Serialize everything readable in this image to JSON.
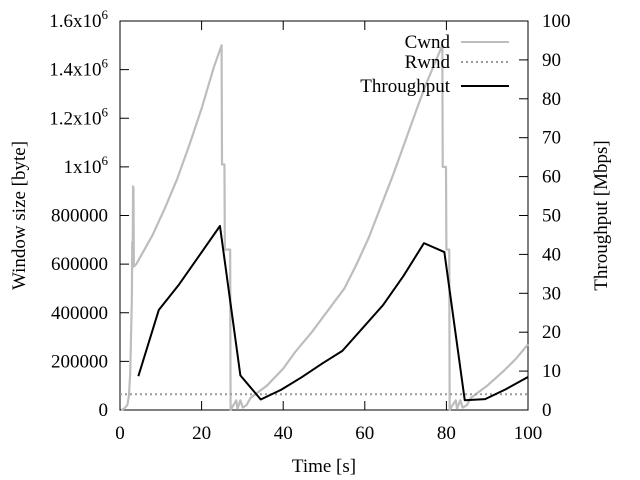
{
  "chart_data": {
    "type": "line",
    "xlabel": "Time [s]",
    "ylabel": "Window size [byte]",
    "y2label": "Throughput [Mbps]",
    "xlim": [
      0,
      100
    ],
    "ylim": [
      0,
      1600000
    ],
    "y2lim": [
      0,
      100
    ],
    "grid": false,
    "legend_position": "top-right",
    "x_ticks": [
      "0",
      "20",
      "40",
      "60",
      "80",
      "100"
    ],
    "y_ticks": [
      {
        "value": 0,
        "label": "0"
      },
      {
        "value": 200000,
        "label": "200000"
      },
      {
        "value": 400000,
        "label": "400000"
      },
      {
        "value": 600000,
        "label": "600000"
      },
      {
        "value": 800000,
        "label": "800000"
      },
      {
        "value": 1000000,
        "mantissa": "1x10",
        "exp": "6"
      },
      {
        "value": 1200000,
        "mantissa": "1.2x10",
        "exp": "6"
      },
      {
        "value": 1400000,
        "mantissa": "1.4x10",
        "exp": "6"
      },
      {
        "value": 1600000,
        "mantissa": "1.6x10",
        "exp": "6"
      }
    ],
    "y2_ticks": [
      "0",
      "10",
      "20",
      "30",
      "40",
      "50",
      "60",
      "70",
      "80",
      "90",
      "100"
    ],
    "series": [
      {
        "name": "Cwnd",
        "axis": "y",
        "color": "#bdbdbd",
        "style": "solid",
        "points": [
          [
            0.3,
            0
          ],
          [
            1,
            5000
          ],
          [
            1.8,
            20000
          ],
          [
            2.2,
            60000
          ],
          [
            2.5,
            150000
          ],
          [
            2.7,
            300000
          ],
          [
            2.9,
            450000
          ],
          [
            3.0,
            690000
          ],
          [
            3.1,
            590000
          ],
          [
            3.2,
            920000
          ],
          [
            3.3,
            910000
          ],
          [
            3.4,
            590000
          ],
          [
            4,
            600000
          ],
          [
            5,
            630000
          ],
          [
            8,
            720000
          ],
          [
            11,
            830000
          ],
          [
            14,
            950000
          ],
          [
            17,
            1090000
          ],
          [
            20,
            1240000
          ],
          [
            23,
            1410000
          ],
          [
            24.9,
            1500000
          ],
          [
            25,
            1010000
          ],
          [
            25.6,
            1010000
          ],
          [
            25.7,
            660000
          ],
          [
            27,
            660000
          ],
          [
            27.1,
            0
          ],
          [
            27.8,
            20000
          ],
          [
            28.5,
            40000
          ],
          [
            28.8,
            5000
          ],
          [
            29.5,
            40000
          ],
          [
            30.1,
            10000
          ],
          [
            31,
            20000
          ],
          [
            32,
            50000
          ],
          [
            36,
            100000
          ],
          [
            40,
            170000
          ],
          [
            43,
            240000
          ],
          [
            47,
            320000
          ],
          [
            51,
            410000
          ],
          [
            55,
            500000
          ],
          [
            58,
            600000
          ],
          [
            61,
            710000
          ],
          [
            64,
            840000
          ],
          [
            67,
            970000
          ],
          [
            70,
            1110000
          ],
          [
            73,
            1250000
          ],
          [
            75,
            1340000
          ],
          [
            77,
            1420000
          ],
          [
            79,
            1500000
          ],
          [
            79.1,
            1000000
          ],
          [
            79.9,
            1000000
          ],
          [
            80,
            660000
          ],
          [
            80.7,
            660000
          ],
          [
            80.8,
            0
          ],
          [
            81.5,
            20000
          ],
          [
            82.3,
            40000
          ],
          [
            82.6,
            5000
          ],
          [
            83.4,
            40000
          ],
          [
            84,
            10000
          ],
          [
            85,
            20000
          ],
          [
            86,
            50000
          ],
          [
            90,
            100000
          ],
          [
            94,
            160000
          ],
          [
            97,
            210000
          ],
          [
            100,
            270000
          ]
        ]
      },
      {
        "name": "Rwnd",
        "axis": "y",
        "color": "#9a9a9a",
        "style": "dotted",
        "points": [
          [
            0,
            65000
          ],
          [
            100,
            65000
          ]
        ]
      },
      {
        "name": "Throughput",
        "axis": "y2",
        "color": "#000000",
        "style": "solid",
        "points": [
          [
            4.5,
            8.7
          ],
          [
            9.5,
            25.7
          ],
          [
            14.5,
            32.3
          ],
          [
            19.5,
            39.8
          ],
          [
            24.5,
            47.3
          ],
          [
            29.5,
            8.9
          ],
          [
            34.5,
            2.7
          ],
          [
            39.5,
            5.2
          ],
          [
            44.5,
            8.4
          ],
          [
            49.5,
            11.9
          ],
          [
            54.5,
            15.2
          ],
          [
            59.5,
            21.1
          ],
          [
            64.5,
            27
          ],
          [
            69.5,
            34.5
          ],
          [
            74.5,
            42.9
          ],
          [
            79.5,
            40.6
          ],
          [
            84.5,
            2.5
          ],
          [
            89.5,
            2.8
          ],
          [
            94.5,
            5.3
          ],
          [
            100,
            8.5
          ]
        ]
      }
    ]
  }
}
